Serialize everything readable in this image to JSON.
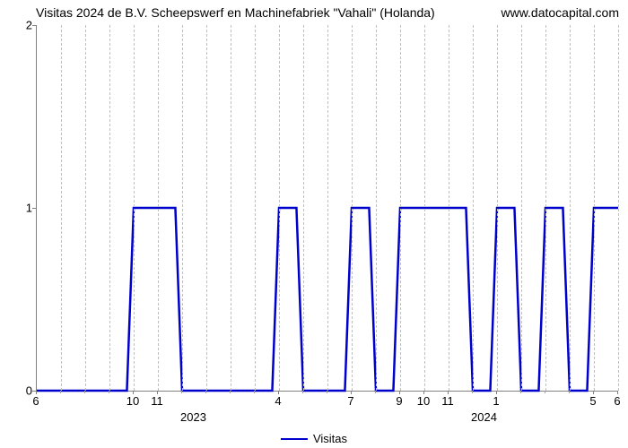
{
  "chart": {
    "type": "line",
    "title": "Visitas 2024 de B.V. Scheepswerf en Machinefabriek \"Vahali\" (Holanda)",
    "watermark": "www.datocapital.com",
    "line_color": "#0000cc",
    "line_width": 2.5,
    "background_color": "#ffffff",
    "grid_color": "#c0c0c0",
    "axis_color": "#808080",
    "title_fontsize": 14,
    "tick_fontsize": 13,
    "legend": {
      "label": "Visitas",
      "position": "bottom-center"
    },
    "y": {
      "min": 0,
      "max": 2,
      "ticks": [
        0,
        1,
        2
      ]
    },
    "x": {
      "min": 0,
      "max": 24,
      "major_tick_idx": [
        0,
        4,
        5,
        10,
        13,
        15,
        16,
        17,
        19,
        23,
        24
      ],
      "major_tick_labels": [
        "6",
        "10",
        "11",
        "4",
        "7",
        "9",
        "10",
        "11",
        "1",
        "5",
        "6"
      ],
      "minor_tick_idx": [
        1,
        2,
        3,
        6,
        7,
        8,
        9,
        11,
        12,
        14,
        18,
        20,
        21,
        22
      ],
      "year_labels": [
        {
          "idx": 6.5,
          "text": "2023"
        },
        {
          "idx": 18.5,
          "text": "2024"
        }
      ]
    },
    "data_y": [
      0,
      0,
      0,
      0,
      1,
      1,
      0,
      0,
      0,
      0,
      1,
      0,
      0,
      1,
      0,
      1,
      1,
      1,
      0,
      1,
      0,
      1,
      0,
      1,
      1
    ]
  }
}
